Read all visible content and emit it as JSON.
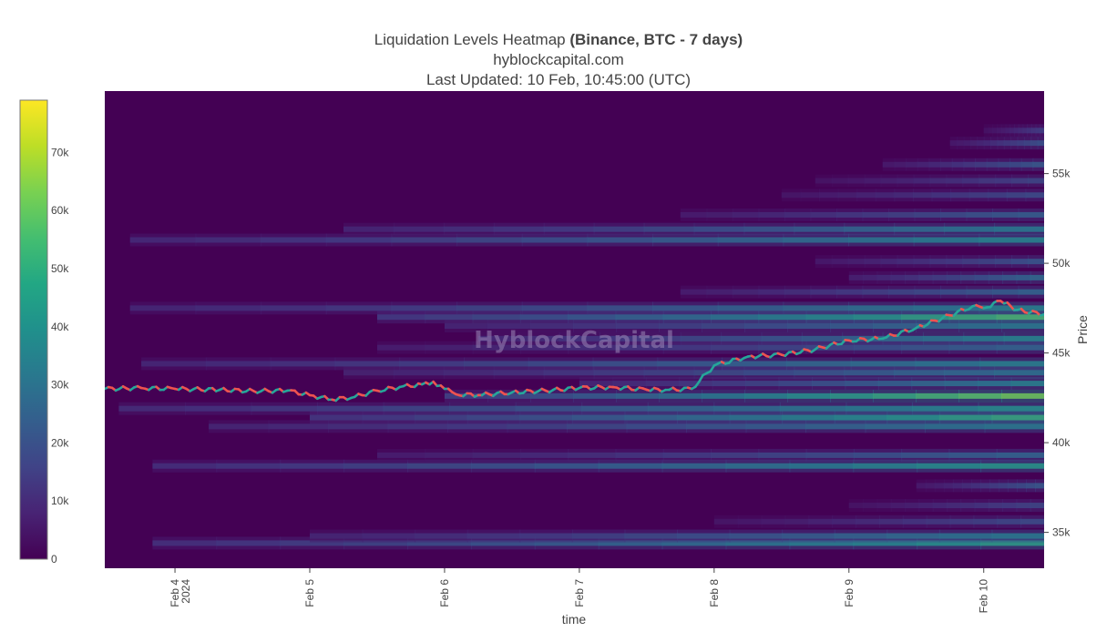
{
  "header": {
    "title_prefix": "Liquidation Levels Heatmap ",
    "title_bold": "(Binance, BTC - 7 days)",
    "subtitle": "hyblockcapital.com",
    "updated": "Last Updated: 10 Feb, 10:45:00 (UTC)"
  },
  "watermark": "HyblockCapital",
  "chart_data": {
    "type": "heatmap",
    "xlabel": "time",
    "ylabel": "Price",
    "x_range": [
      "2024-02-03 11:30",
      "2024-02-10 10:45"
    ],
    "x_ticks": [
      {
        "date": "2024-02-04",
        "label": "Feb 4",
        "sublabel": "2024"
      },
      {
        "date": "2024-02-05",
        "label": "Feb 5",
        "sublabel": ""
      },
      {
        "date": "2024-02-06",
        "label": "Feb 6",
        "sublabel": ""
      },
      {
        "date": "2024-02-07",
        "label": "Feb 7",
        "sublabel": ""
      },
      {
        "date": "2024-02-08",
        "label": "Feb 8",
        "sublabel": ""
      },
      {
        "date": "2024-02-09",
        "label": "Feb 9",
        "sublabel": ""
      },
      {
        "date": "2024-02-10",
        "label": "Feb 10",
        "sublabel": ""
      }
    ],
    "y_range": [
      33000,
      59600
    ],
    "y_ticks": [
      {
        "value": 35000,
        "label": "35k"
      },
      {
        "value": 40000,
        "label": "40k"
      },
      {
        "value": 45000,
        "label": "45k"
      },
      {
        "value": 50000,
        "label": "50k"
      },
      {
        "value": 55000,
        "label": "55k"
      }
    ],
    "colorbar": {
      "colorscale": "viridis",
      "range": [
        0,
        79000
      ],
      "ticks": [
        {
          "value": 0,
          "label": "0"
        },
        {
          "value": 10000,
          "label": "10k"
        },
        {
          "value": 20000,
          "label": "20k"
        },
        {
          "value": 30000,
          "label": "30k"
        },
        {
          "value": 40000,
          "label": "40k"
        },
        {
          "value": 50000,
          "label": "50k"
        },
        {
          "value": 60000,
          "label": "60k"
        },
        {
          "value": 70000,
          "label": "70k"
        }
      ]
    },
    "colors": {
      "background": "#440154",
      "candle_up": "#26a69a",
      "candle_down": "#ef5350"
    },
    "price_series": {
      "name": "BTC price",
      "points": [
        [
          "2024-02-03 11:30",
          43000
        ],
        [
          "2024-02-03 18:00",
          43050
        ],
        [
          "2024-02-04 00:00",
          43000
        ],
        [
          "2024-02-04 08:00",
          42950
        ],
        [
          "2024-02-04 14:00",
          42880
        ],
        [
          "2024-02-04 20:00",
          42900
        ],
        [
          "2024-02-05 00:00",
          42650
        ],
        [
          "2024-02-05 04:00",
          42400
        ],
        [
          "2024-02-05 08:00",
          42550
        ],
        [
          "2024-02-05 12:00",
          42900
        ],
        [
          "2024-02-05 16:00",
          43100
        ],
        [
          "2024-02-05 20:00",
          43250
        ],
        [
          "2024-02-05 22:00",
          43400
        ],
        [
          "2024-02-06 00:00",
          43000
        ],
        [
          "2024-02-06 02:00",
          42700
        ],
        [
          "2024-02-06 06:00",
          42650
        ],
        [
          "2024-02-06 12:00",
          42800
        ],
        [
          "2024-02-06 18:00",
          42900
        ],
        [
          "2024-02-07 00:00",
          43050
        ],
        [
          "2024-02-07 06:00",
          43100
        ],
        [
          "2024-02-07 12:00",
          42950
        ],
        [
          "2024-02-07 16:00",
          42950
        ],
        [
          "2024-02-07 20:00",
          43000
        ],
        [
          "2024-02-08 00:00",
          44300
        ],
        [
          "2024-02-08 06:00",
          44800
        ],
        [
          "2024-02-08 12:00",
          44900
        ],
        [
          "2024-02-08 18:00",
          45200
        ],
        [
          "2024-02-09 00:00",
          45700
        ],
        [
          "2024-02-09 06:00",
          45800
        ],
        [
          "2024-02-09 12:00",
          46400
        ],
        [
          "2024-02-09 18:00",
          47100
        ],
        [
          "2024-02-09 22:00",
          47600
        ],
        [
          "2024-02-10 00:00",
          47500
        ],
        [
          "2024-02-10 03:00",
          47900
        ],
        [
          "2024-02-10 06:00",
          47400
        ],
        [
          "2024-02-10 10:45",
          47150
        ]
      ]
    },
    "bands": [
      {
        "price": 34400,
        "start": "2024-02-03 20:00",
        "peak": 50000
      },
      {
        "price": 34800,
        "start": "2024-02-05 00:00",
        "peak": 38000
      },
      {
        "price": 35600,
        "start": "2024-02-08 00:00",
        "peak": 22000
      },
      {
        "price": 36500,
        "start": "2024-02-09 00:00",
        "peak": 20000
      },
      {
        "price": 37600,
        "start": "2024-02-09 12:00",
        "peak": 26000
      },
      {
        "price": 38700,
        "start": "2024-02-03 20:00",
        "peak": 48000
      },
      {
        "price": 39300,
        "start": "2024-02-05 12:00",
        "peak": 30000
      },
      {
        "price": 40900,
        "start": "2024-02-04 06:00",
        "peak": 38000
      },
      {
        "price": 41400,
        "start": "2024-02-05 00:00",
        "peak": 55000
      },
      {
        "price": 41900,
        "start": "2024-02-03 14:00",
        "peak": 45000
      },
      {
        "price": 42600,
        "start": "2024-02-06 00:00",
        "peak": 68000
      },
      {
        "price": 43300,
        "start": "2024-02-07 00:00",
        "peak": 40000
      },
      {
        "price": 43900,
        "start": "2024-02-05 06:00",
        "peak": 35000
      },
      {
        "price": 44400,
        "start": "2024-02-03 18:00",
        "peak": 40000
      },
      {
        "price": 45300,
        "start": "2024-02-05 12:00",
        "peak": 30000
      },
      {
        "price": 45800,
        "start": "2024-02-06 06:00",
        "peak": 42000
      },
      {
        "price": 46500,
        "start": "2024-02-06 00:00",
        "peak": 38000
      },
      {
        "price": 47000,
        "start": "2024-02-05 12:00",
        "peak": 60000
      },
      {
        "price": 47500,
        "start": "2024-02-03 16:00",
        "peak": 40000
      },
      {
        "price": 48400,
        "start": "2024-02-07 18:00",
        "peak": 30000
      },
      {
        "price": 49200,
        "start": "2024-02-09 00:00",
        "peak": 32000
      },
      {
        "price": 50100,
        "start": "2024-02-08 18:00",
        "peak": 25000
      },
      {
        "price": 51300,
        "start": "2024-02-03 16:00",
        "peak": 42000
      },
      {
        "price": 51900,
        "start": "2024-02-05 06:00",
        "peak": 38000
      },
      {
        "price": 52700,
        "start": "2024-02-07 18:00",
        "peak": 28000
      },
      {
        "price": 53800,
        "start": "2024-02-08 12:00",
        "peak": 22000
      },
      {
        "price": 54600,
        "start": "2024-02-08 18:00",
        "peak": 20000
      },
      {
        "price": 55500,
        "start": "2024-02-09 06:00",
        "peak": 26000
      },
      {
        "price": 56700,
        "start": "2024-02-09 18:00",
        "peak": 24000
      },
      {
        "price": 57400,
        "start": "2024-02-10 00:00",
        "peak": 18000
      }
    ]
  }
}
